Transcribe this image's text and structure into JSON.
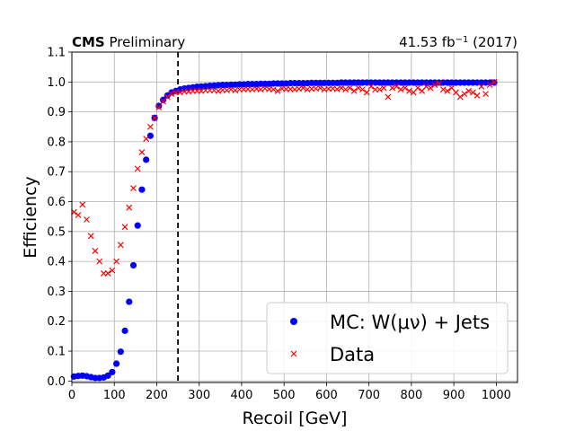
{
  "chart_data": {
    "type": "scatter",
    "header_left_bold": "CMS",
    "header_left_rest": " Preliminary",
    "header_right": "41.53 fb",
    "header_right_sup": "−1",
    "header_right_tail": " (2017)",
    "xlabel": "Recoil [GeV]",
    "ylabel": "Efficiency",
    "xlim": [
      0,
      1050
    ],
    "ylim": [
      -0.005,
      1.1
    ],
    "xticks": [
      "0",
      "100",
      "200",
      "300",
      "400",
      "500",
      "600",
      "700",
      "800",
      "900",
      "1000"
    ],
    "yticks": [
      "0.0",
      "0.1",
      "0.2",
      "0.3",
      "0.4",
      "0.5",
      "0.6",
      "0.7",
      "0.8",
      "0.9",
      "1.0",
      "1.1"
    ],
    "grid": true,
    "legend_position": "bottom-right",
    "vline": {
      "x": 250,
      "style": "dashed",
      "color": "#000000"
    },
    "series": [
      {
        "name": "MC: W(μν) + Jets",
        "legend_label": "MC: W(μν) + Jets",
        "marker": "circle",
        "color": "#0000ff",
        "x": [
          5,
          15,
          25,
          35,
          45,
          55,
          65,
          75,
          85,
          95,
          105,
          115,
          125,
          135,
          145,
          155,
          165,
          175,
          185,
          195,
          205,
          215,
          225,
          235,
          245,
          255,
          265,
          275,
          285,
          295,
          305,
          315,
          325,
          335,
          345,
          355,
          365,
          375,
          385,
          395,
          405,
          415,
          425,
          435,
          445,
          455,
          465,
          475,
          485,
          495,
          505,
          515,
          525,
          535,
          545,
          555,
          565,
          575,
          585,
          595,
          605,
          615,
          625,
          635,
          645,
          655,
          665,
          675,
          685,
          695,
          705,
          715,
          725,
          735,
          745,
          755,
          765,
          775,
          785,
          795,
          805,
          815,
          825,
          835,
          845,
          855,
          865,
          875,
          885,
          895,
          905,
          915,
          925,
          935,
          945,
          955,
          965,
          975,
          985,
          995
        ],
        "y": [
          0.015,
          0.017,
          0.018,
          0.016,
          0.013,
          0.01,
          0.01,
          0.012,
          0.018,
          0.03,
          0.058,
          0.098,
          0.168,
          0.265,
          0.387,
          0.52,
          0.64,
          0.74,
          0.82,
          0.88,
          0.92,
          0.94,
          0.955,
          0.965,
          0.97,
          0.975,
          0.978,
          0.98,
          0.982,
          0.984,
          0.985,
          0.986,
          0.987,
          0.988,
          0.989,
          0.99,
          0.99,
          0.991,
          0.991,
          0.992,
          0.992,
          0.993,
          0.993,
          0.993,
          0.994,
          0.994,
          0.994,
          0.995,
          0.995,
          0.995,
          0.995,
          0.996,
          0.996,
          0.996,
          0.996,
          0.996,
          0.997,
          0.997,
          0.997,
          0.997,
          0.997,
          0.997,
          0.997,
          0.998,
          0.998,
          0.998,
          0.998,
          0.998,
          0.998,
          0.998,
          0.998,
          0.998,
          0.998,
          0.998,
          0.998,
          0.998,
          0.998,
          0.998,
          0.998,
          0.998,
          0.998,
          0.998,
          0.998,
          0.998,
          0.998,
          0.998,
          0.998,
          0.998,
          0.998,
          0.998,
          0.998,
          0.998,
          0.998,
          0.998,
          0.998,
          0.998,
          0.998,
          0.998,
          0.998,
          0.998
        ]
      },
      {
        "name": "Data",
        "legend_label": "Data",
        "marker": "x",
        "color": "#ff0000",
        "x": [
          5,
          15,
          25,
          35,
          45,
          55,
          65,
          75,
          85,
          95,
          105,
          115,
          125,
          135,
          145,
          155,
          165,
          175,
          185,
          195,
          205,
          215,
          225,
          235,
          245,
          255,
          265,
          275,
          285,
          295,
          305,
          315,
          325,
          335,
          345,
          355,
          365,
          375,
          385,
          395,
          405,
          415,
          425,
          435,
          445,
          455,
          465,
          475,
          485,
          495,
          505,
          515,
          525,
          535,
          545,
          555,
          565,
          575,
          585,
          595,
          605,
          615,
          625,
          635,
          645,
          655,
          665,
          675,
          685,
          695,
          705,
          715,
          725,
          735,
          745,
          755,
          765,
          775,
          785,
          795,
          805,
          815,
          825,
          835,
          845,
          855,
          865,
          875,
          885,
          895,
          905,
          915,
          925,
          935,
          945,
          955,
          965,
          975,
          985,
          995
        ],
        "y": [
          0.565,
          0.555,
          0.59,
          0.54,
          0.485,
          0.435,
          0.4,
          0.36,
          0.36,
          0.37,
          0.4,
          0.455,
          0.515,
          0.58,
          0.645,
          0.71,
          0.765,
          0.81,
          0.85,
          0.88,
          0.915,
          0.935,
          0.95,
          0.96,
          0.965,
          0.965,
          0.968,
          0.968,
          0.97,
          0.97,
          0.97,
          0.972,
          0.972,
          0.972,
          0.97,
          0.973,
          0.972,
          0.975,
          0.972,
          0.975,
          0.975,
          0.976,
          0.975,
          0.977,
          0.975,
          0.978,
          0.976,
          0.975,
          0.97,
          0.978,
          0.976,
          0.976,
          0.975,
          0.977,
          0.98,
          0.975,
          0.977,
          0.978,
          0.98,
          0.975,
          0.977,
          0.978,
          0.976,
          0.98,
          0.975,
          0.98,
          0.97,
          0.98,
          0.975,
          0.965,
          0.985,
          0.975,
          0.975,
          0.98,
          0.95,
          0.98,
          0.985,
          0.975,
          0.98,
          0.97,
          0.965,
          0.98,
          0.97,
          0.985,
          0.98,
          0.99,
          0.995,
          0.975,
          0.97,
          0.98,
          0.965,
          0.95,
          0.96,
          0.97,
          0.965,
          0.955,
          0.985,
          0.96,
          0.99,
          1.0
        ]
      }
    ]
  }
}
